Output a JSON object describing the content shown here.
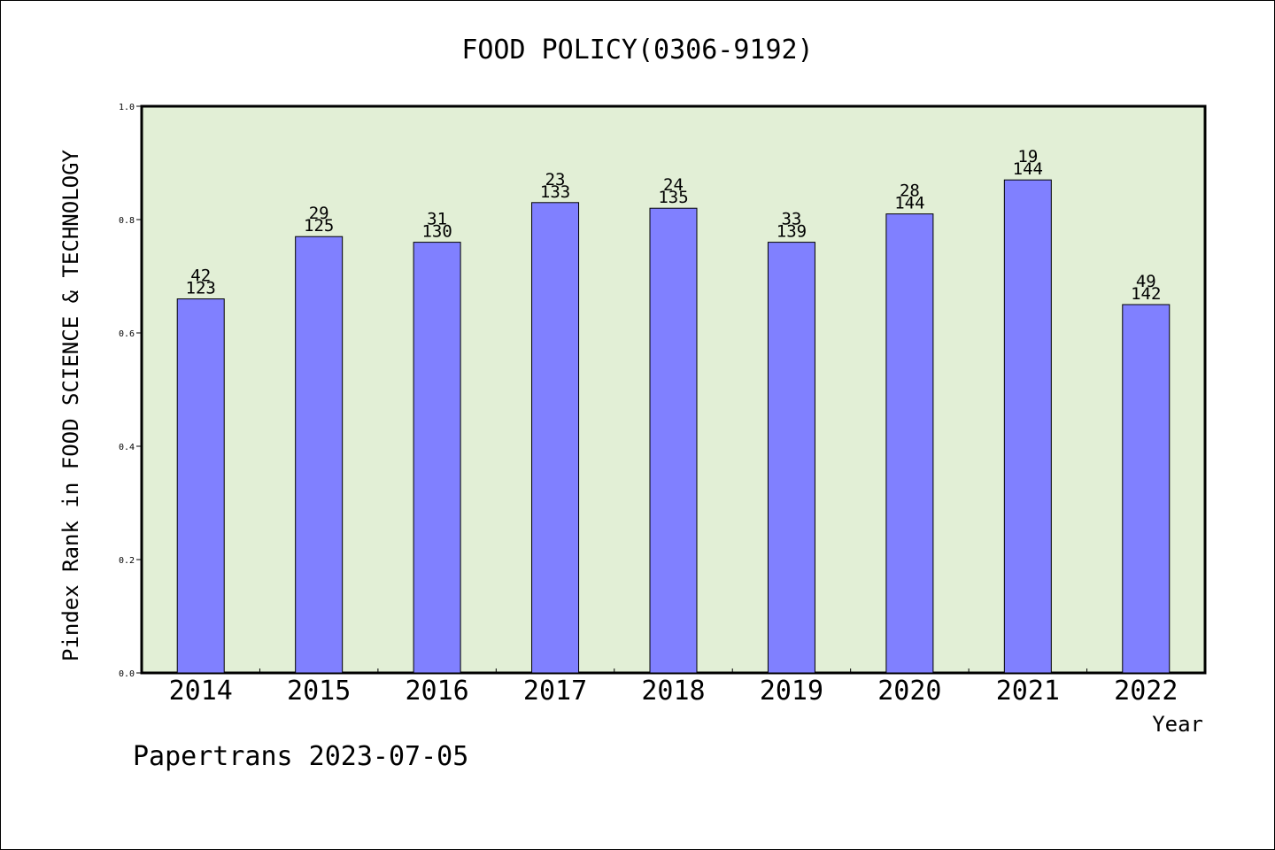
{
  "chart_data": {
    "type": "bar",
    "title": "FOOD POLICY(0306-9192)",
    "xlabel": "Year",
    "ylabel": "Pindex Rank in FOOD SCIENCE & TECHNOLOGY",
    "ylim": [
      0.0,
      1.0
    ],
    "yticks": [
      "0.0",
      "0.2",
      "0.4",
      "0.6",
      "0.8",
      "1.0"
    ],
    "categories": [
      "2014",
      "2015",
      "2016",
      "2017",
      "2018",
      "2019",
      "2020",
      "2021",
      "2022"
    ],
    "values": [
      0.66,
      0.77,
      0.76,
      0.83,
      0.82,
      0.76,
      0.81,
      0.87,
      0.65
    ],
    "rank_labels": [
      "42",
      "29",
      "31",
      "23",
      "24",
      "33",
      "28",
      "19",
      "49"
    ],
    "total_labels": [
      "123",
      "125",
      "130",
      "133",
      "135",
      "139",
      "144",
      "144",
      "142"
    ],
    "grid": false,
    "colors": {
      "bar": "#8080ff",
      "plot_bg": "#e2efd6",
      "axis": "#000000"
    }
  },
  "footer": "Papertrans 2023-07-05"
}
